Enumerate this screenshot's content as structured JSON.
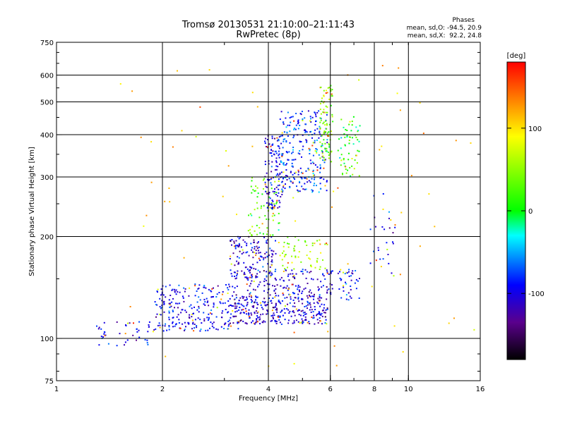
{
  "header": {
    "title_line1": "Tromsø 20130531 21:10:00–21:11:43",
    "title_line2": "RwPretec (8p)"
  },
  "phases": {
    "heading": "Phases",
    "o_line": "mean, sd,O: -94.5, 20.9",
    "x_line": "mean, sd,X:  92.2, 24.8"
  },
  "colorbar": {
    "label": "[deg]",
    "ticks": [
      {
        "value": 100,
        "label": "100"
      },
      {
        "value": 0,
        "label": "0"
      },
      {
        "value": -100,
        "label": "-100"
      }
    ],
    "range": [
      -180,
      180
    ]
  },
  "chart_data": {
    "type": "scatter",
    "title": "Tromsø 20130531 21:10:00–21:11:43",
    "subtitle": "RwPretec (8p)",
    "xlabel": "Frequency [MHz]",
    "ylabel": "Stationary phase Virtual Height [km]",
    "xscale": "log",
    "yscale": "log",
    "xlim": [
      1,
      16
    ],
    "ylim": [
      75,
      750
    ],
    "x_ticks": [
      {
        "v": 1,
        "label": "1"
      },
      {
        "v": 2,
        "label": "2"
      },
      {
        "v": 4,
        "label": "4"
      },
      {
        "v": 6,
        "label": "6"
      },
      {
        "v": 8,
        "label": "8"
      },
      {
        "v": 10,
        "label": "10"
      },
      {
        "v": 16,
        "label": "16"
      }
    ],
    "x_grid": [
      2,
      4,
      6,
      8,
      10
    ],
    "y_ticks": [
      {
        "v": 75,
        "label": "75"
      },
      {
        "v": 100,
        "label": "100"
      },
      {
        "v": 200,
        "label": "200"
      },
      {
        "v": 300,
        "label": "300"
      },
      {
        "v": 400,
        "label": "400"
      },
      {
        "v": 500,
        "label": "500"
      },
      {
        "v": 600,
        "label": "600"
      },
      {
        "v": 750,
        "label": "750"
      }
    ],
    "y_grid": [
      100,
      200,
      300,
      400,
      500,
      600
    ],
    "grid": true,
    "colorscale": "rainbow, black at -180 deg to red at +180 deg",
    "clusters": [
      {
        "x": [
          1.3,
          1.9
        ],
        "y": [
          95,
          112
        ],
        "phase": -95,
        "count": 45
      },
      {
        "x": [
          1.9,
          3.3
        ],
        "y": [
          105,
          145
        ],
        "phase": -95,
        "count": 260
      },
      {
        "x": [
          3.2,
          5.9
        ],
        "y": [
          110,
          135
        ],
        "phase": -105,
        "count": 320
      },
      {
        "x": [
          3.4,
          6.1
        ],
        "y": [
          135,
          160
        ],
        "phase": -100,
        "count": 140
      },
      {
        "x": [
          3.1,
          4.2
        ],
        "y": [
          150,
          200
        ],
        "phase": -105,
        "count": 150
      },
      {
        "x": [
          4.2,
          5.9
        ],
        "y": [
          160,
          200
        ],
        "phase": 60,
        "count": 60
      },
      {
        "x": [
          3.5,
          4.3
        ],
        "y": [
          200,
          300
        ],
        "phase": 30,
        "count": 70
      },
      {
        "x": [
          3.9,
          4.4
        ],
        "y": [
          240,
          400
        ],
        "phase": -100,
        "count": 120
      },
      {
        "x": [
          4.3,
          5.9
        ],
        "y": [
          270,
          470
        ],
        "phase": -80,
        "count": 260
      },
      {
        "x": [
          5.6,
          6.1
        ],
        "y": [
          330,
          560
        ],
        "phase": 40,
        "count": 90
      },
      {
        "x": [
          6.3,
          7.3
        ],
        "y": [
          300,
          460
        ],
        "phase": 10,
        "count": 60
      },
      {
        "x": [
          6.3,
          7.3
        ],
        "y": [
          130,
          160
        ],
        "phase": -90,
        "count": 40
      },
      {
        "x": [
          7.8,
          9.2
        ],
        "y": [
          150,
          280
        ],
        "phase": -100,
        "count": 30
      },
      {
        "x": [
          1.5,
          16
        ],
        "y": [
          80,
          650
        ],
        "phase": 110,
        "count": 80
      }
    ]
  }
}
